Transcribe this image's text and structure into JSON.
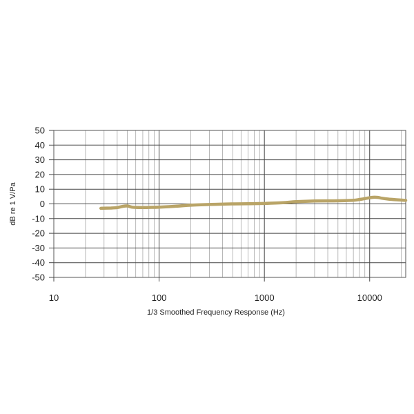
{
  "chart_data": {
    "type": "line",
    "title": "",
    "xlabel": "1/3 Smoothed Frequency Response (Hz)",
    "ylabel": "dB re 1 V/Pa",
    "xscale": "log",
    "xlim": [
      10,
      22000
    ],
    "ylim": [
      -50,
      50
    ],
    "xticks": [
      10,
      100,
      1000,
      10000
    ],
    "xtick_labels": [
      "10",
      "100",
      "1000",
      "10000"
    ],
    "yticks": [
      50,
      40,
      30,
      20,
      10,
      0,
      -10,
      -20,
      -30,
      -40,
      -50
    ],
    "ytick_labels": [
      "50",
      "40",
      "30",
      "20",
      "10",
      "0",
      "-10",
      "-20",
      "-30",
      "-40",
      "-50"
    ],
    "grid": true,
    "legend": "none",
    "series": [
      {
        "color": "#b9a467",
        "x": [
          28,
          35,
          40,
          45,
          50,
          55,
          60,
          70,
          80,
          100,
          150,
          200,
          300,
          500,
          700,
          1000,
          1500,
          2000,
          3000,
          5000,
          7000,
          8000,
          9000,
          10000,
          11000,
          12000,
          13000,
          15000,
          18000,
          22000
        ],
        "y": [
          -3.0,
          -2.8,
          -2.5,
          -1.7,
          -1.4,
          -2.2,
          -2.4,
          -2.5,
          -2.4,
          -2.2,
          -1.5,
          -0.9,
          -0.4,
          0.0,
          0.1,
          0.3,
          0.8,
          1.5,
          2.0,
          2.1,
          2.5,
          3.0,
          3.6,
          4.2,
          4.5,
          4.4,
          3.9,
          3.3,
          2.8,
          2.4
        ]
      }
    ]
  }
}
